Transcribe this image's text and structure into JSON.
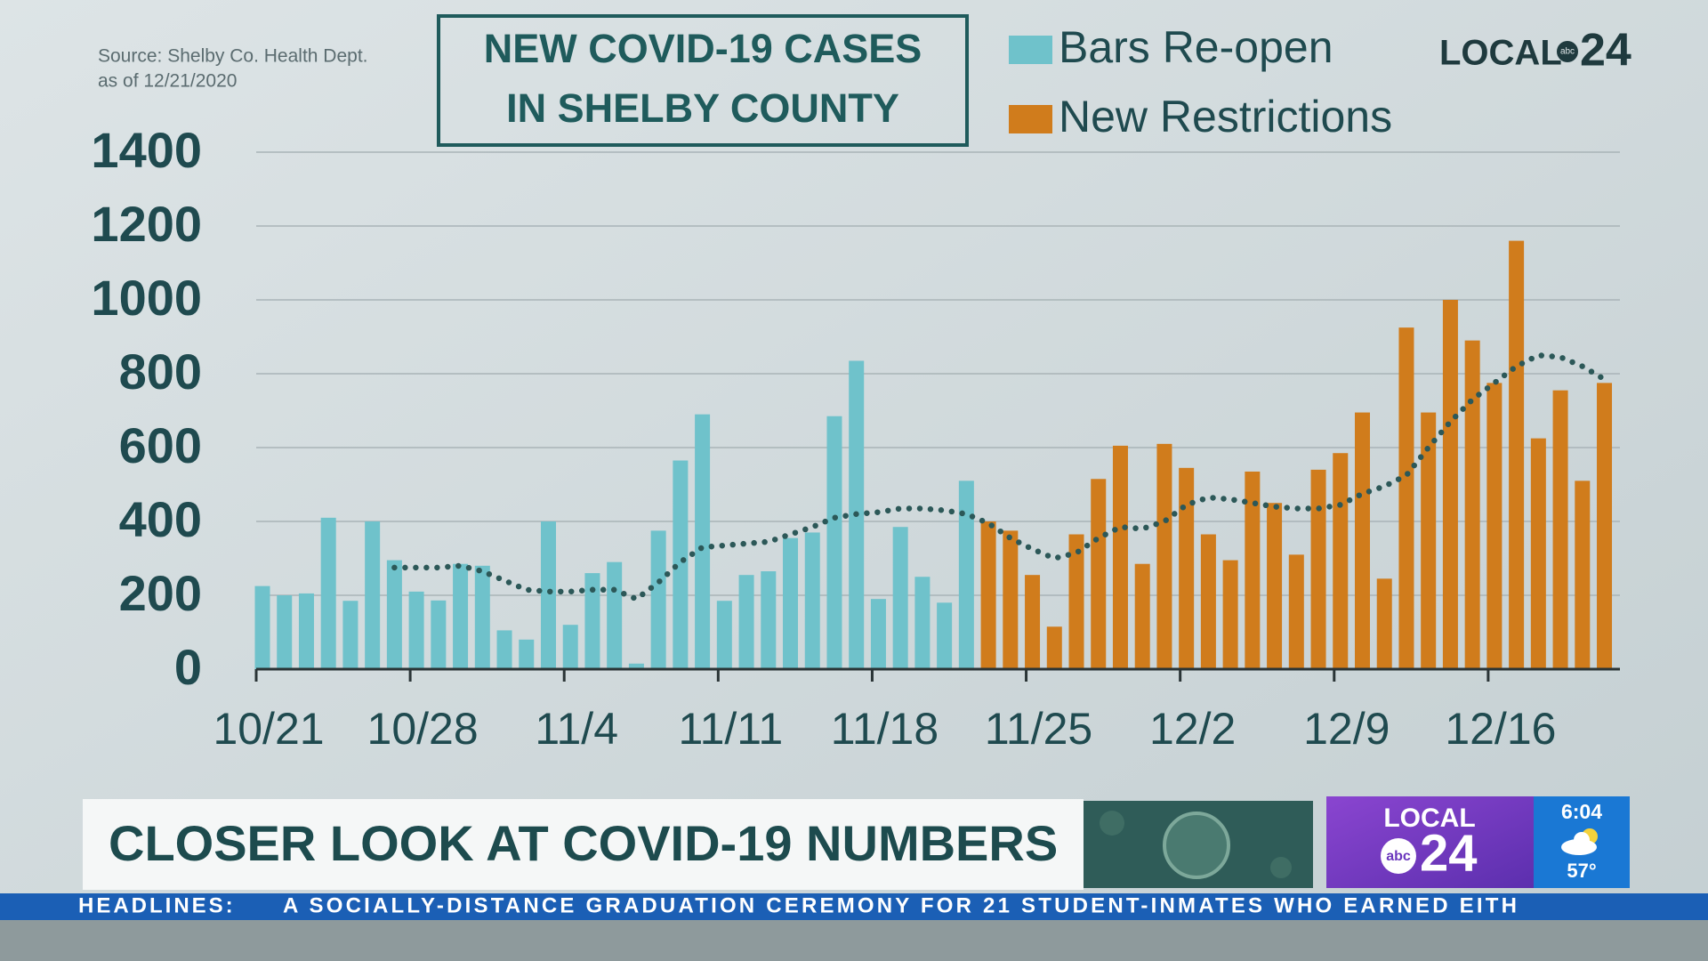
{
  "source": [
    "Source:  Shelby Co. Health Dept.",
    "as of 12/21/2020"
  ],
  "logo": {
    "text": "LOCAL",
    "network": "abc",
    "number": "24"
  },
  "chart_data": {
    "type": "bar",
    "title": [
      "NEW COVID-19 CASES",
      "IN SHELBY COUNTY"
    ],
    "categories": [
      "10/21",
      null,
      null,
      null,
      null,
      null,
      null,
      "10/28",
      null,
      null,
      null,
      null,
      null,
      null,
      "11/4",
      null,
      null,
      null,
      null,
      null,
      null,
      "11/11",
      null,
      null,
      null,
      null,
      null,
      null,
      "11/18",
      null,
      null,
      null,
      null,
      null,
      null,
      "11/25",
      null,
      null,
      null,
      null,
      null,
      null,
      "12/2",
      null,
      null,
      null,
      null,
      null,
      null,
      "12/9",
      null,
      null,
      null,
      null,
      null,
      null,
      "12/16",
      null,
      null,
      null,
      null,
      null
    ],
    "series": [
      {
        "name": "Bars Re-open",
        "color": "#6fc2cb",
        "values": [
          225,
          200,
          205,
          410,
          185,
          400,
          295,
          210,
          186,
          285,
          280,
          105,
          80,
          400,
          120,
          260,
          290,
          15,
          375,
          565,
          690,
          185,
          255,
          265,
          355,
          370,
          685,
          835,
          190,
          385,
          250,
          180,
          510,
          null,
          null,
          null,
          null,
          null,
          null,
          null,
          null,
          null,
          null,
          null,
          null,
          null,
          null,
          null,
          null,
          null,
          null,
          null,
          null,
          null,
          null,
          null,
          null,
          null,
          null,
          null,
          null,
          null
        ]
      },
      {
        "name": "New Restrictions",
        "color": "#d07c1c",
        "values": [
          null,
          null,
          null,
          null,
          null,
          null,
          null,
          null,
          null,
          null,
          null,
          null,
          null,
          null,
          null,
          null,
          null,
          null,
          null,
          null,
          null,
          null,
          null,
          null,
          null,
          null,
          null,
          null,
          null,
          null,
          null,
          null,
          null,
          400,
          375,
          255,
          115,
          365,
          515,
          605,
          285,
          610,
          545,
          365,
          295,
          535,
          450,
          310,
          540,
          585,
          695,
          245,
          925,
          695,
          1000,
          890,
          775,
          1160,
          625,
          755,
          510,
          775
        ]
      }
    ],
    "trend": {
      "color": "#2c5858",
      "values": [
        null,
        null,
        null,
        null,
        null,
        null,
        275,
        275,
        275,
        280,
        265,
        240,
        215,
        210,
        210,
        215,
        215,
        190,
        235,
        290,
        330,
        335,
        340,
        345,
        365,
        385,
        410,
        420,
        425,
        435,
        435,
        430,
        420,
        395,
        355,
        325,
        300,
        315,
        355,
        385,
        380,
        400,
        445,
        465,
        460,
        450,
        440,
        435,
        435,
        445,
        475,
        495,
        525,
        600,
        670,
        730,
        775,
        820,
        850,
        845,
        820,
        785
      ]
    },
    "ylim": [
      0,
      1400
    ],
    "yticks": [
      0,
      200,
      400,
      600,
      800,
      1000,
      1200,
      1400
    ],
    "grid": true,
    "legend": "top"
  },
  "lower_third": {
    "headline": "CLOSER LOOK AT COVID-19 NUMBERS",
    "station": "LOCAL",
    "network": "abc",
    "number": "24",
    "time": "6:04",
    "temperature": "57°"
  },
  "ticker": {
    "label": "HEADLINES:",
    "text": "A SOCIALLY-DISTANCE GRADUATION CEREMONY FOR 21 STUDENT-INMATES WHO EARNED EITH"
  }
}
